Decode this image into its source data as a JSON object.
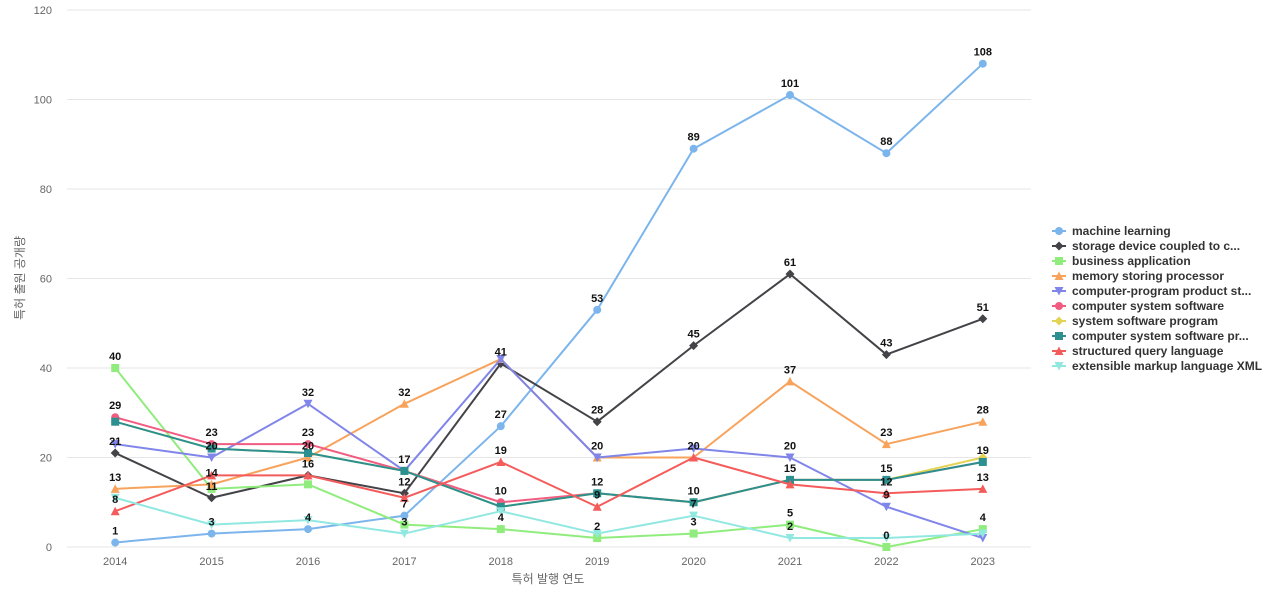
{
  "chart_data": {
    "type": "line",
    "title": "",
    "xlabel": "특허 발행 연도",
    "ylabel": "특허 출원 공개량",
    "x": [
      "2014",
      "2015",
      "2016",
      "2017",
      "2018",
      "2019",
      "2020",
      "2021",
      "2022",
      "2023"
    ],
    "ylim": [
      0,
      120
    ],
    "yticks": [
      0,
      20,
      40,
      60,
      80,
      100,
      120
    ],
    "grid": true,
    "legend_position": "right",
    "series": [
      {
        "name": "machine learning",
        "color": "#7cb5ec",
        "marker": "circle",
        "values": [
          1,
          3,
          4,
          7,
          27,
          53,
          89,
          101,
          88,
          108
        ]
      },
      {
        "name": "storage device coupled to c...",
        "color": "#434348",
        "marker": "diamond",
        "values": [
          21,
          11,
          16,
          12,
          41,
          28,
          45,
          61,
          43,
          51
        ]
      },
      {
        "name": "business application",
        "color": "#90ed7d",
        "marker": "square",
        "values": [
          40,
          13,
          14,
          5,
          4,
          2,
          3,
          5,
          0,
          4
        ]
      },
      {
        "name": "memory storing processor",
        "color": "#f7a35c",
        "marker": "triangle",
        "values": [
          13,
          14,
          20,
          32,
          42,
          20,
          20,
          37,
          23,
          28
        ]
      },
      {
        "name": "computer-program product st...",
        "color": "#8085e9",
        "marker": "triangle-down",
        "values": [
          23,
          20,
          32,
          17,
          42,
          20,
          22,
          20,
          9,
          2
        ]
      },
      {
        "name": "computer system software",
        "color": "#f15c80",
        "marker": "circle",
        "values": [
          29,
          23,
          23,
          17,
          10,
          12,
          10,
          15,
          15,
          19
        ]
      },
      {
        "name": "system software program",
        "color": "#e4d354",
        "marker": "diamond",
        "values": [
          28,
          22,
          21,
          17,
          9,
          12,
          10,
          15,
          15,
          20
        ]
      },
      {
        "name": "computer system software pr...",
        "color": "#2b908f",
        "marker": "square",
        "values": [
          28,
          22,
          21,
          17,
          9,
          12,
          10,
          15,
          15,
          19
        ]
      },
      {
        "name": "structured query language",
        "color": "#f45b5b",
        "marker": "triangle",
        "values": [
          8,
          16,
          16,
          11,
          19,
          9,
          20,
          14,
          12,
          13
        ]
      },
      {
        "name": "extensible markup language XML",
        "color": "#91e8e1",
        "marker": "triangle-down",
        "values": [
          11,
          5,
          6,
          3,
          8,
          3,
          7,
          2,
          2,
          3
        ]
      }
    ],
    "data_labels": [
      {
        "x": "2014",
        "text": "40",
        "value": 40
      },
      {
        "x": "2014",
        "text": "29",
        "value": 29
      },
      {
        "x": "2014",
        "text": "21",
        "value": 21
      },
      {
        "x": "2014",
        "text": "13",
        "value": 13
      },
      {
        "x": "2014",
        "text": "8",
        "value": 8
      },
      {
        "x": "2014",
        "text": "1",
        "value": 1
      },
      {
        "x": "2015",
        "text": "23",
        "value": 23
      },
      {
        "x": "2015",
        "text": "20",
        "value": 20
      },
      {
        "x": "2015",
        "text": "14",
        "value": 14
      },
      {
        "x": "2015",
        "text": "11",
        "value": 11
      },
      {
        "x": "2015",
        "text": "3",
        "value": 3
      },
      {
        "x": "2016",
        "text": "32",
        "value": 32
      },
      {
        "x": "2016",
        "text": "23",
        "value": 23
      },
      {
        "x": "2016",
        "text": "20",
        "value": 20
      },
      {
        "x": "2016",
        "text": "16",
        "value": 16
      },
      {
        "x": "2016",
        "text": "4",
        "value": 4
      },
      {
        "x": "2017",
        "text": "32",
        "value": 32
      },
      {
        "x": "2017",
        "text": "17",
        "value": 17
      },
      {
        "x": "2017",
        "text": "12",
        "value": 12
      },
      {
        "x": "2017",
        "text": "7",
        "value": 7
      },
      {
        "x": "2017",
        "text": "3",
        "value": 3
      },
      {
        "x": "2018",
        "text": "41",
        "value": 41
      },
      {
        "x": "2018",
        "text": "27",
        "value": 27
      },
      {
        "x": "2018",
        "text": "19",
        "value": 19
      },
      {
        "x": "2018",
        "text": "10",
        "value": 10
      },
      {
        "x": "2018",
        "text": "4",
        "value": 4
      },
      {
        "x": "2019",
        "text": "53",
        "value": 53
      },
      {
        "x": "2019",
        "text": "28",
        "value": 28
      },
      {
        "x": "2019",
        "text": "20",
        "value": 20
      },
      {
        "x": "2019",
        "text": "12",
        "value": 12
      },
      {
        "x": "2019",
        "text": "9",
        "value": 9
      },
      {
        "x": "2019",
        "text": "2",
        "value": 2
      },
      {
        "x": "2020",
        "text": "89",
        "value": 89
      },
      {
        "x": "2020",
        "text": "45",
        "value": 45
      },
      {
        "x": "2020",
        "text": "20",
        "value": 20
      },
      {
        "x": "2020",
        "text": "10",
        "value": 10
      },
      {
        "x": "2020",
        "text": "7",
        "value": 7
      },
      {
        "x": "2020",
        "text": "3",
        "value": 3
      },
      {
        "x": "2021",
        "text": "101",
        "value": 101
      },
      {
        "x": "2021",
        "text": "61",
        "value": 61
      },
      {
        "x": "2021",
        "text": "37",
        "value": 37
      },
      {
        "x": "2021",
        "text": "20",
        "value": 20
      },
      {
        "x": "2021",
        "text": "15",
        "value": 15
      },
      {
        "x": "2021",
        "text": "5",
        "value": 5
      },
      {
        "x": "2021",
        "text": "2",
        "value": 2
      },
      {
        "x": "2022",
        "text": "88",
        "value": 88
      },
      {
        "x": "2022",
        "text": "43",
        "value": 43
      },
      {
        "x": "2022",
        "text": "23",
        "value": 23
      },
      {
        "x": "2022",
        "text": "15",
        "value": 15
      },
      {
        "x": "2022",
        "text": "12",
        "value": 12
      },
      {
        "x": "2022",
        "text": "9",
        "value": 9
      },
      {
        "x": "2022",
        "text": "0",
        "value": 0
      },
      {
        "x": "2023",
        "text": "108",
        "value": 108
      },
      {
        "x": "2023",
        "text": "51",
        "value": 51
      },
      {
        "x": "2023",
        "text": "28",
        "value": 28
      },
      {
        "x": "2023",
        "text": "19",
        "value": 19
      },
      {
        "x": "2023",
        "text": "13",
        "value": 13
      },
      {
        "x": "2023",
        "text": "4",
        "value": 4
      }
    ]
  }
}
